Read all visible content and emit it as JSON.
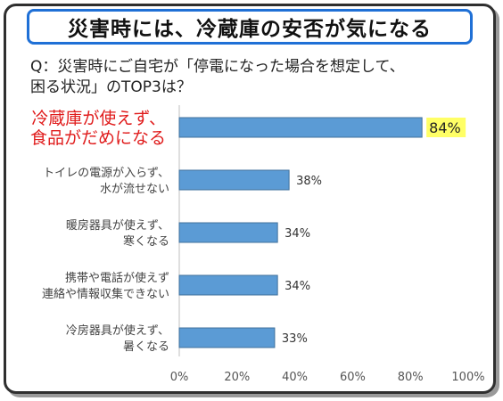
{
  "banner": {
    "title": "災害時には、冷蔵庫の安否が気になる"
  },
  "question": {
    "line1": "Q：災害時にご自宅が「停電になった場合を想定して、",
    "line2": "困る状況」のTOP3は？"
  },
  "chart_data": {
    "type": "bar",
    "orientation": "horizontal",
    "categories": [
      [
        "冷蔵庫が使えず、",
        "食品がだめになる"
      ],
      [
        "トイレの電源が入らず、",
        "水が流せない"
      ],
      [
        "暖房器具が使えず、",
        "寒くなる"
      ],
      [
        "携帯や電話が使えず",
        "連絡や情報収集できない"
      ],
      [
        "冷房器具が使えず、",
        "暑くなる"
      ]
    ],
    "values": [
      84,
      38,
      34,
      34,
      33
    ],
    "value_labels": [
      "84%",
      "38%",
      "34%",
      "34%",
      "33%"
    ],
    "highlight_index": 0,
    "xlim": [
      0,
      100
    ],
    "xticks": [
      "0%",
      "20%",
      "40%",
      "60%",
      "80%",
      "100%"
    ],
    "bar_color": "#5b9bd5",
    "bar_border_color": "#41719c",
    "highlight_label_color": "#e01c1c",
    "highlight_value_bg": "#ffff66",
    "grid": false
  }
}
